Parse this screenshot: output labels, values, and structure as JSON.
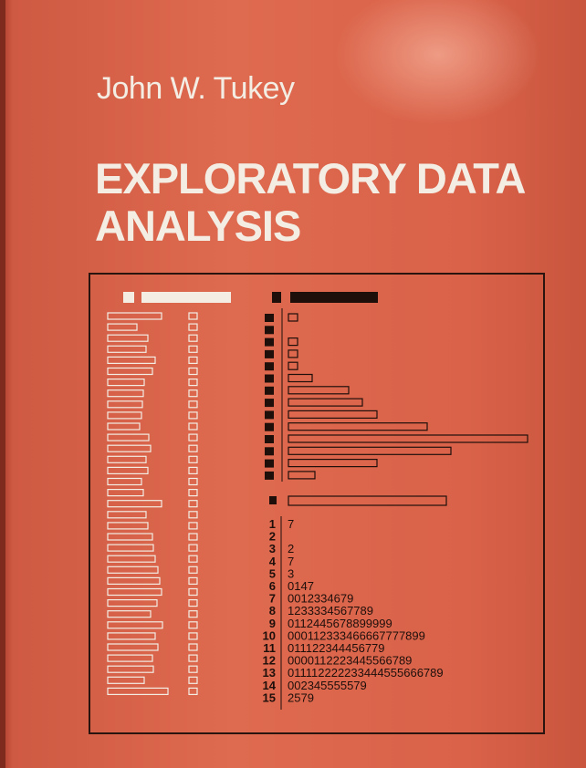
{
  "cover": {
    "author": "John W. Tukey",
    "title_line1": "EXPLORATORY DATA",
    "title_line2": "ANALYSIS"
  },
  "colors": {
    "cover_red": "#d96249",
    "light_ink": "#f3ede4",
    "dark_ink": "#1e0f0b"
  },
  "figure": {
    "left_bars": [
      0.7,
      0.38,
      0.52,
      0.5,
      0.62,
      0.58,
      0.48,
      0.46,
      0.45,
      0.44,
      0.42,
      0.54,
      0.56,
      0.5,
      0.52,
      0.44,
      0.46,
      0.7,
      0.5,
      0.52,
      0.58,
      0.6,
      0.62,
      0.66,
      0.68,
      0.7,
      0.64,
      0.56,
      0.72,
      0.62,
      0.66,
      0.58,
      0.6,
      0.48,
      0.78
    ],
    "histogram_bars": [
      0.04,
      0.0,
      0.04,
      0.04,
      0.04,
      0.1,
      0.25,
      0.31,
      0.37,
      0.58,
      1.0,
      0.68,
      0.37,
      0.11
    ],
    "summary_bar": 0.66,
    "stem_leaf": [
      {
        "stem": "1",
        "leaves": "7"
      },
      {
        "stem": "2",
        "leaves": ""
      },
      {
        "stem": "3",
        "leaves": "2"
      },
      {
        "stem": "4",
        "leaves": "7"
      },
      {
        "stem": "5",
        "leaves": "3"
      },
      {
        "stem": "6",
        "leaves": "0147"
      },
      {
        "stem": "7",
        "leaves": "0012334679"
      },
      {
        "stem": "8",
        "leaves": "1233334567789"
      },
      {
        "stem": "9",
        "leaves": "0112445678899999"
      },
      {
        "stem": "10",
        "leaves": "000112333466667777899"
      },
      {
        "stem": "11",
        "leaves": "011122344456779"
      },
      {
        "stem": "12",
        "leaves": "0000112223445566789"
      },
      {
        "stem": "13",
        "leaves": "011112222233444555666789"
      },
      {
        "stem": "14",
        "leaves": "002345555579"
      },
      {
        "stem": "15",
        "leaves": "2579"
      }
    ]
  }
}
